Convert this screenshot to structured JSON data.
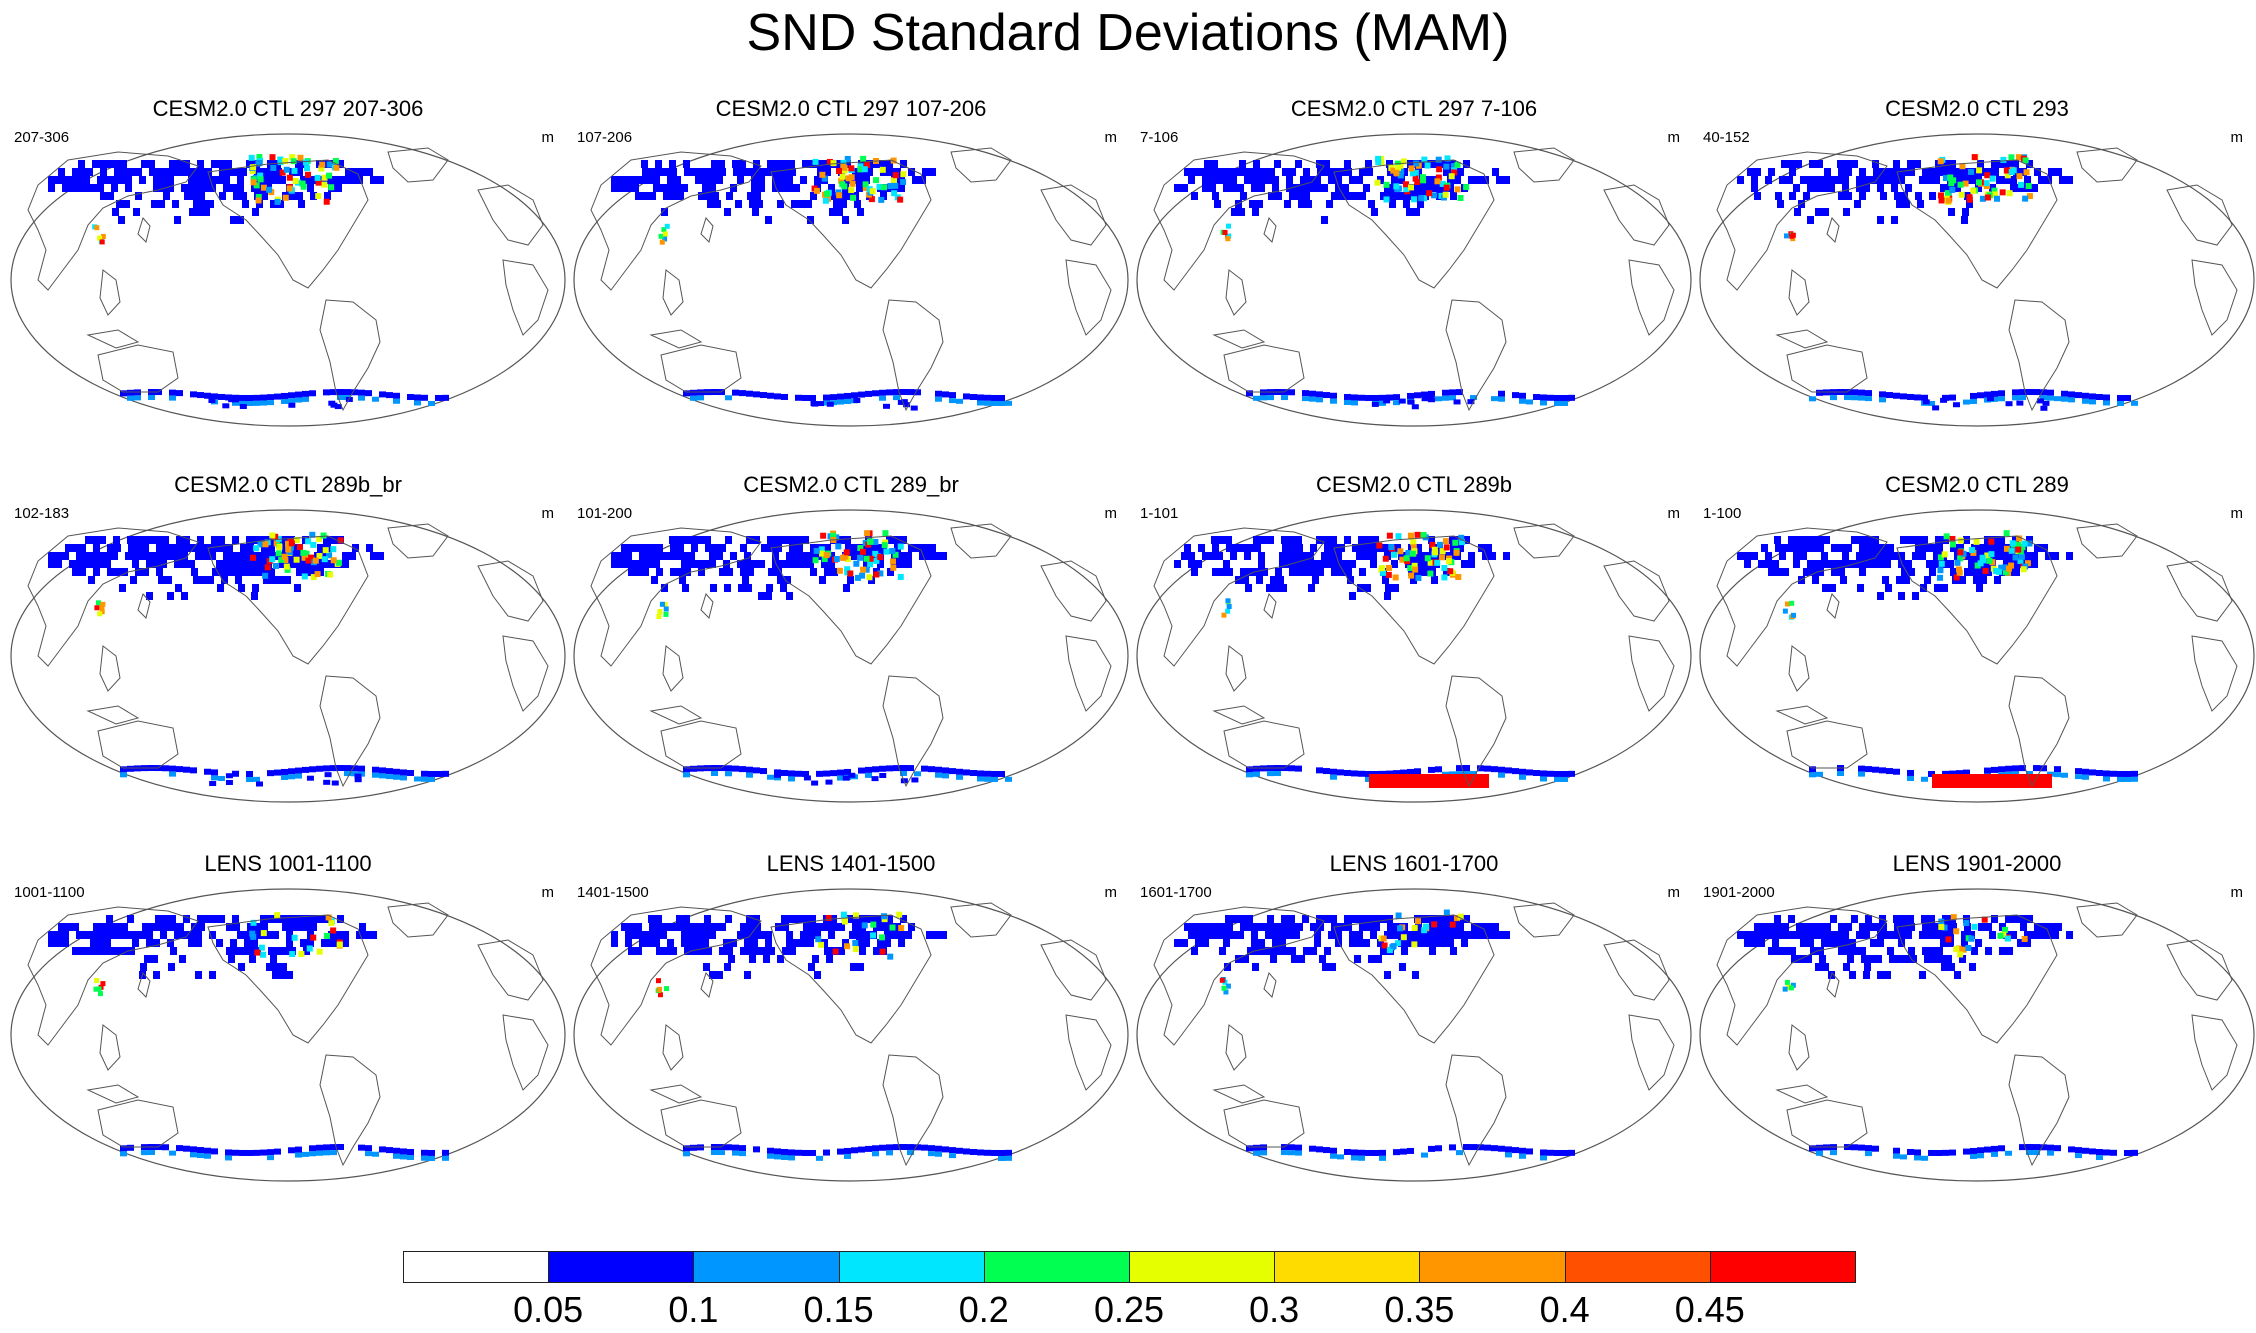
{
  "title": "SND Standard Deviations (MAM)",
  "panels": [
    {
      "title": "CESM2.0 CTL 297 207-306",
      "left_label": "207-306",
      "right_label": "m",
      "antarctic_level": "mid"
    },
    {
      "title": "CESM2.0 CTL 297 107-206",
      "left_label": "107-206",
      "right_label": "m",
      "antarctic_level": "mid"
    },
    {
      "title": "CESM2.0 CTL 297 7-106",
      "left_label": "7-106",
      "right_label": "m",
      "antarctic_level": "mid"
    },
    {
      "title": "CESM2.0 CTL 293",
      "left_label": "40-152",
      "right_label": "m",
      "antarctic_level": "mid"
    },
    {
      "title": "CESM2.0 CTL 289b_br",
      "left_label": "102-183",
      "right_label": "m",
      "antarctic_level": "mid"
    },
    {
      "title": "CESM2.0 CTL 289_br",
      "left_label": "101-200",
      "right_label": "m",
      "antarctic_level": "mid"
    },
    {
      "title": "CESM2.0 CTL 289b",
      "left_label": "1-101",
      "right_label": "m",
      "antarctic_level": "high"
    },
    {
      "title": "CESM2.0 CTL 289",
      "left_label": "1-100",
      "right_label": "m",
      "antarctic_level": "high"
    },
    {
      "title": "LENS 1001-1100",
      "left_label": "1001-1100",
      "right_label": "m",
      "antarctic_level": "low"
    },
    {
      "title": "LENS 1401-1500",
      "left_label": "1401-1500",
      "right_label": "m",
      "antarctic_level": "low"
    },
    {
      "title": "LENS 1601-1700",
      "left_label": "1601-1700",
      "right_label": "m",
      "antarctic_level": "low"
    },
    {
      "title": "LENS 1901-2000",
      "left_label": "1901-2000",
      "right_label": "m",
      "antarctic_level": "low"
    }
  ],
  "colorbar": {
    "labels": [
      "0.05",
      "0.1",
      "0.15",
      "0.2",
      "0.25",
      "0.3",
      "0.35",
      "0.4",
      "0.45"
    ],
    "colors": [
      "#ffffff",
      "#0000ff",
      "#0096ff",
      "#00e6ff",
      "#00ff50",
      "#e6ff00",
      "#ffdc00",
      "#ff9600",
      "#ff5000",
      "#ff0000"
    ],
    "unit": "m"
  },
  "colors": {
    "low": "#0000ff",
    "mid": "#0096ff",
    "cyan": "#00e6ff",
    "green": "#00ff50",
    "yellow": "#e6ff00",
    "orange": "#ff9600",
    "red": "#ff0000"
  }
}
